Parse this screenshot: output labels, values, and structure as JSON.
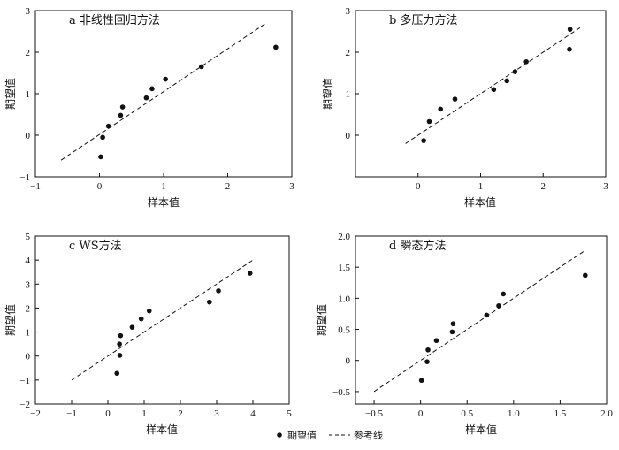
{
  "chart_data": [
    {
      "type": "scatter",
      "title": "a 非线性回归方法",
      "xlabel": "样本值",
      "ylabel": "期望值",
      "xlim": [
        -1,
        3
      ],
      "ylim": [
        -1,
        3
      ],
      "xticks": [
        "−1",
        "0",
        "1",
        "2",
        "3"
      ],
      "yticks": [
        "−1",
        "0",
        "1",
        "2",
        "3"
      ],
      "points": [
        [
          0.02,
          -0.52
        ],
        [
          0.05,
          -0.05
        ],
        [
          0.14,
          0.22
        ],
        [
          0.33,
          0.48
        ],
        [
          0.36,
          0.68
        ],
        [
          0.73,
          0.9
        ],
        [
          0.82,
          1.12
        ],
        [
          1.03,
          1.35
        ],
        [
          1.59,
          1.65
        ],
        [
          2.75,
          2.12
        ]
      ],
      "ref_line": [
        [
          -0.6,
          -0.6
        ],
        [
          2.6,
          2.7
        ]
      ]
    },
    {
      "type": "scatter",
      "title": "b 多压力方法",
      "xlabel": "样本值",
      "ylabel": "期望值",
      "xlim": [
        -1,
        3
      ],
      "ylim": [
        -1,
        3
      ],
      "xticks": [
        "0",
        "1",
        "2",
        "3"
      ],
      "yticks": [
        "0",
        "1",
        "2",
        "3"
      ],
      "points": [
        [
          0.09,
          -0.13
        ],
        [
          0.18,
          0.33
        ],
        [
          0.36,
          0.63
        ],
        [
          0.59,
          0.87
        ],
        [
          1.21,
          1.1
        ],
        [
          1.42,
          1.31
        ],
        [
          1.55,
          1.53
        ],
        [
          1.73,
          1.77
        ],
        [
          2.42,
          2.07
        ],
        [
          2.43,
          2.55
        ]
      ],
      "ref_line": [
        [
          -0.2,
          -0.2
        ],
        [
          2.6,
          2.6
        ]
      ]
    },
    {
      "type": "scatter",
      "title": "c WS方法",
      "xlabel": "样本值",
      "ylabel": "期望值",
      "xlim": [
        -2,
        5
      ],
      "ylim": [
        -2,
        5
      ],
      "xticks": [
        "−2",
        "−1",
        "0",
        "1",
        "2",
        "3",
        "4",
        "5"
      ],
      "yticks": [
        "−2",
        "−1",
        "0",
        "1",
        "2",
        "3",
        "4",
        "5"
      ],
      "points": [
        [
          0.25,
          -0.72
        ],
        [
          0.33,
          0.03
        ],
        [
          0.32,
          0.5
        ],
        [
          0.35,
          0.85
        ],
        [
          0.67,
          1.2
        ],
        [
          0.92,
          1.55
        ],
        [
          1.14,
          1.88
        ],
        [
          2.8,
          2.25
        ],
        [
          3.05,
          2.72
        ],
        [
          3.92,
          3.45
        ]
      ],
      "ref_line": [
        [
          -1.0,
          -1.0
        ],
        [
          4.0,
          4.0
        ]
      ]
    },
    {
      "type": "scatter",
      "title": "d 瞬态方法",
      "xlabel": "样本值",
      "ylabel": "期望值",
      "xlim": [
        -0.7,
        2.0
      ],
      "ylim": [
        -0.7,
        2.0
      ],
      "xticks": [
        "−0.5",
        "0",
        "0.5",
        "1.0",
        "1.5",
        "2.0"
      ],
      "yticks": [
        "−0.5",
        "0",
        "0.5",
        "1.0",
        "1.5",
        "2.0"
      ],
      "points": [
        [
          0.01,
          -0.32
        ],
        [
          0.07,
          -0.02
        ],
        [
          0.08,
          0.17
        ],
        [
          0.17,
          0.32
        ],
        [
          0.34,
          0.46
        ],
        [
          0.35,
          0.59
        ],
        [
          0.71,
          0.73
        ],
        [
          0.84,
          0.88
        ],
        [
          0.89,
          1.07
        ],
        [
          1.77,
          1.37
        ]
      ],
      "ref_line": [
        [
          -0.5,
          -0.5
        ],
        [
          1.75,
          1.75
        ]
      ]
    }
  ],
  "legend": {
    "points_label": "期望值",
    "line_label": "参考线",
    "placement": "bottom"
  },
  "colors": {
    "ink": "#111111"
  }
}
